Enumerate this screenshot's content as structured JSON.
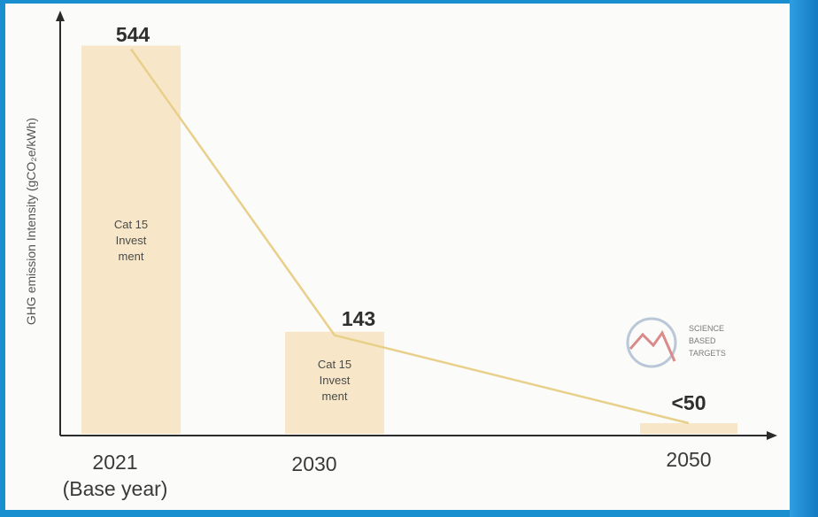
{
  "colors": {
    "bar": "#f7e7c8",
    "line": "#e8cf8a",
    "axis": "#2b2b2b",
    "background": "#fbfbf9",
    "frame_blue": "#1a8fd0"
  },
  "logo": {
    "name": "science-based-targets-logo",
    "lines": [
      "SCIENCE",
      "BASED",
      "TARGETS"
    ]
  },
  "chart_data": {
    "type": "bar",
    "ylabel": "GHG emission Intensity (gCO₂e/kWh)",
    "xlabel": "",
    "categories": [
      "2021",
      "2030",
      "2050"
    ],
    "category_sublabels": [
      "(Base year)",
      "",
      ""
    ],
    "values": [
      544,
      143,
      50
    ],
    "value_labels": [
      "544",
      "143",
      "<50"
    ],
    "bar_labels": [
      [
        "Cat 15",
        "Invest",
        "ment"
      ],
      [
        "Cat 15",
        "Invest",
        "ment"
      ],
      []
    ],
    "trend_line": true,
    "ylim": [
      0,
      560
    ],
    "grid": false,
    "legend": "none"
  }
}
